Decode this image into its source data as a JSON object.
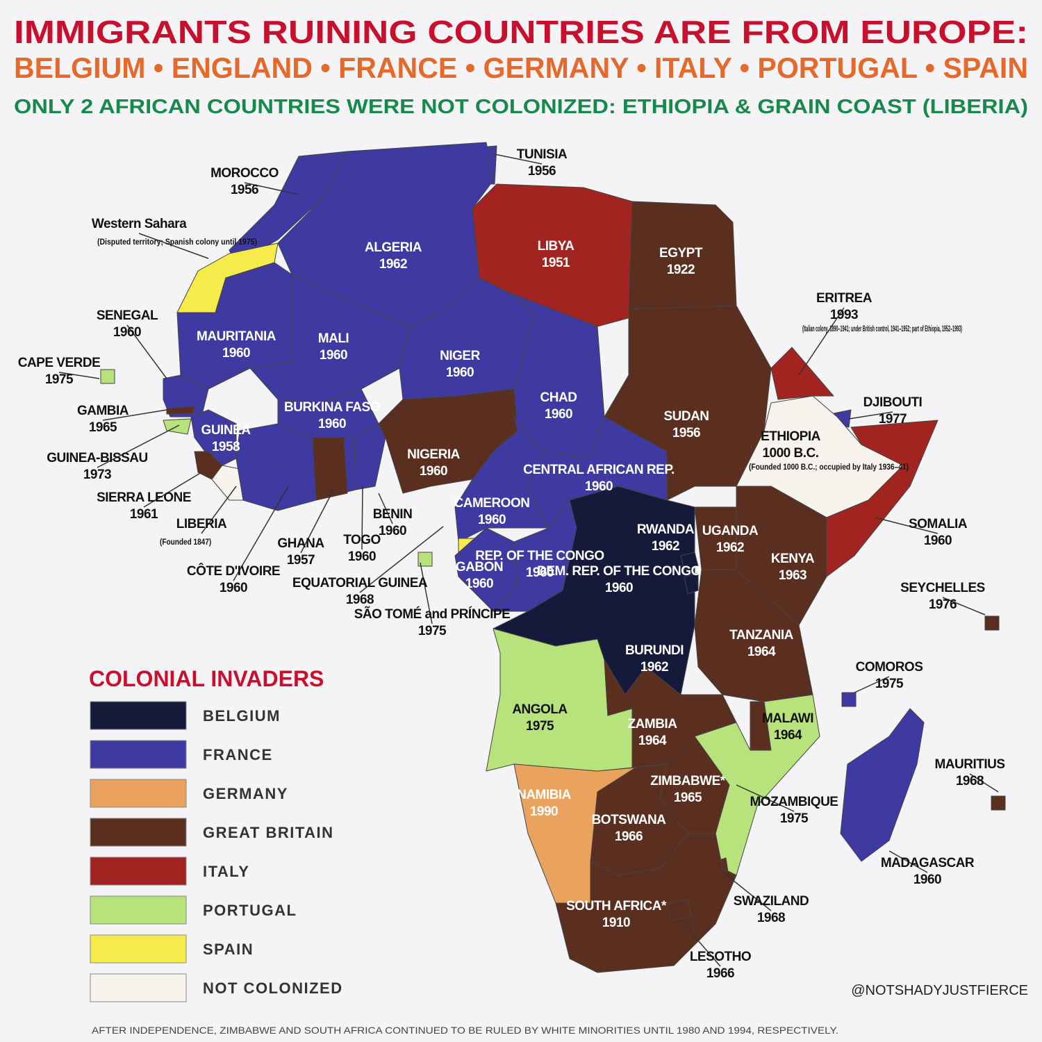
{
  "header": {
    "title": "IMMIGRANTS RUINING COUNTRIES ARE FROM EUROPE:",
    "colonizers": "BELGIUM • ENGLAND • FRANCE • GERMANY • ITALY • PORTUGAL • SPAIN",
    "note": "ONLY 2 AFRICAN COUNTRIES WERE NOT COLONIZED: ETHIOPIA & GRAIN COAST (LIBERIA)"
  },
  "legend": {
    "title": "COLONIAL INVADERS",
    "items": [
      {
        "label": "BELGIUM",
        "color": "#151a3b"
      },
      {
        "label": "FRANCE",
        "color": "#3f39a2"
      },
      {
        "label": "GERMANY",
        "color": "#eaa35e"
      },
      {
        "label": "GREAT BRITAIN",
        "color": "#5b2f20"
      },
      {
        "label": "ITALY",
        "color": "#a22420"
      },
      {
        "label": "PORTUGAL",
        "color": "#b8e27b"
      },
      {
        "label": "SPAIN",
        "color": "#f5ec4c"
      },
      {
        "label": "NOT COLONIZED",
        "color": "#f6f4ec"
      }
    ]
  },
  "countries": [
    {
      "name": "MOROCCO",
      "year": "1956",
      "invader": "FRANCE"
    },
    {
      "name": "TUNISIA",
      "year": "1956",
      "invader": "FRANCE"
    },
    {
      "name": "Western Sahara",
      "note": "(Disputed territory; Spanish colony until 1975)",
      "invader": "SPAIN"
    },
    {
      "name": "ALGERIA",
      "year": "1962",
      "invader": "FRANCE"
    },
    {
      "name": "LIBYA",
      "year": "1951",
      "invader": "ITALY"
    },
    {
      "name": "EGYPT",
      "year": "1922",
      "invader": "GREAT BRITAIN"
    },
    {
      "name": "ERITREA",
      "year": "1993",
      "note": "(Italian colony, 1890–1941; under British control, 1941–1952; part of Ethiopia, 1952–1993)",
      "invader": "ITALY"
    },
    {
      "name": "SENEGAL",
      "year": "1960",
      "invader": "FRANCE"
    },
    {
      "name": "CAPE VERDE",
      "year": "1975",
      "invader": "PORTUGAL"
    },
    {
      "name": "MAURITANIA",
      "year": "1960",
      "invader": "FRANCE"
    },
    {
      "name": "MALI",
      "year": "1960",
      "invader": "FRANCE"
    },
    {
      "name": "NIGER",
      "year": "1960",
      "invader": "FRANCE"
    },
    {
      "name": "CHAD",
      "year": "1960",
      "invader": "FRANCE"
    },
    {
      "name": "SUDAN",
      "year": "1956",
      "invader": "GREAT BRITAIN"
    },
    {
      "name": "DJIBOUTI",
      "year": "1977",
      "invader": "FRANCE"
    },
    {
      "name": "ETHIOPIA",
      "year": "1000 B.C.",
      "note": "(Founded 1000 B.C.; occupied by Italy 1936–41)",
      "invader": "NOT COLONIZED"
    },
    {
      "name": "GAMBIA",
      "year": "1965",
      "invader": "GREAT BRITAIN"
    },
    {
      "name": "GUINEA",
      "year": "1958",
      "invader": "FRANCE"
    },
    {
      "name": "GUINEA-BISSAU",
      "year": "1973",
      "invader": "PORTUGAL"
    },
    {
      "name": "BURKINA FASO",
      "year": "1960",
      "invader": "FRANCE"
    },
    {
      "name": "NIGERIA",
      "year": "1960",
      "invader": "GREAT BRITAIN"
    },
    {
      "name": "CENTRAL AFRICAN REP.",
      "year": "1960",
      "invader": "FRANCE"
    },
    {
      "name": "SIERRA LEONE",
      "year": "1961",
      "invader": "GREAT BRITAIN"
    },
    {
      "name": "LIBERIA",
      "note": "(Founded 1847)",
      "invader": "NOT COLONIZED"
    },
    {
      "name": "CÔTE D'IVOIRE",
      "year": "1960",
      "invader": "FRANCE"
    },
    {
      "name": "GHANA",
      "year": "1957",
      "invader": "GREAT BRITAIN"
    },
    {
      "name": "TOGO",
      "year": "1960",
      "invader": "FRANCE"
    },
    {
      "name": "BENIN",
      "year": "1960",
      "invader": "FRANCE"
    },
    {
      "name": "CAMEROON",
      "year": "1960",
      "invader": "FRANCE"
    },
    {
      "name": "EQUATORIAL GUINEA",
      "year": "1968",
      "invader": "SPAIN"
    },
    {
      "name": "SÃO TOMÉ and PRÍNCIPE",
      "year": "1975",
      "invader": "PORTUGAL"
    },
    {
      "name": "GABON",
      "year": "1960",
      "invader": "FRANCE"
    },
    {
      "name": "REP. OF THE CONGO",
      "year": "1960",
      "invader": "FRANCE"
    },
    {
      "name": "DEM. REP. OF THE CONGO",
      "year": "1960",
      "invader": "BELGIUM"
    },
    {
      "name": "RWANDA",
      "year": "1962",
      "invader": "BELGIUM"
    },
    {
      "name": "UGANDA",
      "year": "1962",
      "invader": "GREAT BRITAIN"
    },
    {
      "name": "KENYA",
      "year": "1963",
      "invader": "GREAT BRITAIN"
    },
    {
      "name": "SOMALIA",
      "year": "1960",
      "invader": "ITALY"
    },
    {
      "name": "SEYCHELLES",
      "year": "1976",
      "invader": "GREAT BRITAIN"
    },
    {
      "name": "BURUNDI",
      "year": "1962",
      "invader": "BELGIUM"
    },
    {
      "name": "TANZANIA",
      "year": "1964",
      "invader": "GREAT BRITAIN"
    },
    {
      "name": "COMOROS",
      "year": "1975",
      "invader": "FRANCE"
    },
    {
      "name": "ANGOLA",
      "year": "1975",
      "invader": "PORTUGAL"
    },
    {
      "name": "ZAMBIA",
      "year": "1964",
      "invader": "GREAT BRITAIN"
    },
    {
      "name": "MALAWI",
      "year": "1964",
      "invader": "GREAT BRITAIN"
    },
    {
      "name": "MAURITIUS",
      "year": "1968",
      "invader": "GREAT BRITAIN"
    },
    {
      "name": "ZIMBABWE*",
      "year": "1965",
      "invader": "GREAT BRITAIN"
    },
    {
      "name": "NAMIBIA",
      "year": "1990",
      "invader": "GERMANY"
    },
    {
      "name": "MOZAMBIQUE",
      "year": "1975",
      "invader": "PORTUGAL"
    },
    {
      "name": "BOTSWANA",
      "year": "1966",
      "invader": "GREAT BRITAIN"
    },
    {
      "name": "MADAGASCAR",
      "year": "1960",
      "invader": "FRANCE"
    },
    {
      "name": "SWAZILAND",
      "year": "1968",
      "invader": "GREAT BRITAIN"
    },
    {
      "name": "SOUTH AFRICA*",
      "year": "1910",
      "invader": "GREAT BRITAIN"
    },
    {
      "name": "LESOTHO",
      "year": "1966",
      "invader": "GREAT BRITAIN"
    }
  ],
  "credit": "@NOTSHADYJUSTFIERCE",
  "footnote": "AFTER INDEPENDENCE, ZIMBABWE AND SOUTH AFRICA CONTINUED TO BE RULED BY WHITE MINORITIES UNTIL 1980 AND 1994, RESPECTIVELY."
}
